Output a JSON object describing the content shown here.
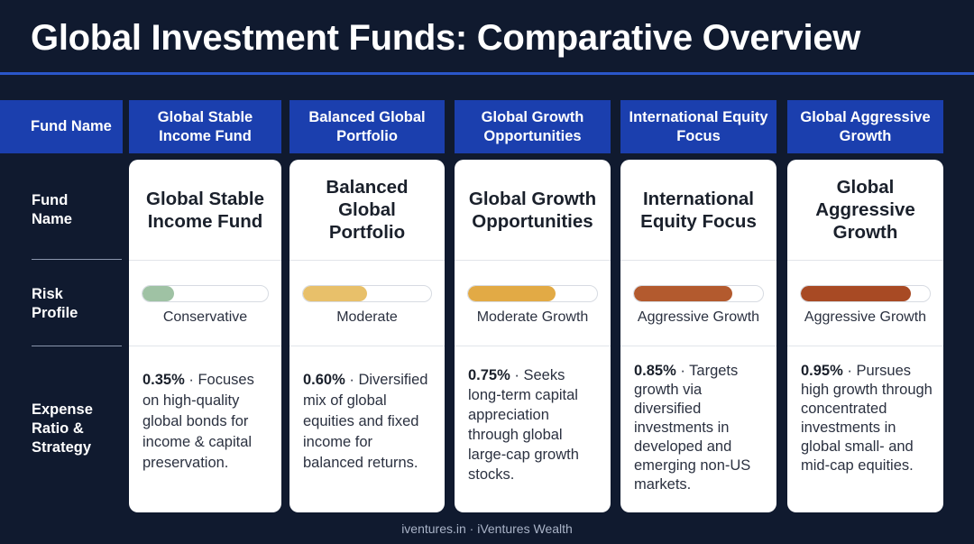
{
  "title": "Global Investment Funds: Comparative Overview",
  "header": {
    "first_label": "Fund Name",
    "columns": [
      "Global Stable Income Fund",
      "Balanced Global Portfolio",
      "Global Growth Opportunities",
      "International Equity Focus",
      "Global Aggressive Growth"
    ]
  },
  "row_labels": {
    "fund_name": "Fund Name",
    "risk_profile": "Risk Profile",
    "expense_strategy": "Expense Ratio & Strategy"
  },
  "funds": [
    {
      "name": "Global Stable Income Fund",
      "risk_label": "Conservative",
      "risk_level": 0.25,
      "risk_color": "#9fc2a4",
      "expense_ratio": "0.35%",
      "strategy": " · Focuses on high-quality global bonds for income & capital preservation."
    },
    {
      "name": "Balanced Global Portfolio",
      "risk_label": "Moderate",
      "risk_level": 0.5,
      "risk_color": "#e8c06a",
      "expense_ratio": "0.60%",
      "strategy": " · Diversified mix of global equities and fixed income for balanced returns."
    },
    {
      "name": "Global Growth Opportunities",
      "risk_label": "Moderate Growth",
      "risk_level": 0.68,
      "risk_color": "#e2aa45",
      "expense_ratio": "0.75%",
      "strategy": " · Seeks long-term capital appreciation through global large-cap growth stocks."
    },
    {
      "name": "International Equity Focus",
      "risk_label": "Aggressive Growth",
      "risk_level": 0.76,
      "risk_color": "#b35a2e",
      "expense_ratio": "0.85%",
      "strategy": " · Targets growth via diversified investments in developed and emerging non-US markets."
    },
    {
      "name": "Global Aggressive Growth",
      "risk_label": "Aggressive Growth",
      "risk_level": 0.85,
      "risk_color": "#a84a24",
      "expense_ratio": "0.95%",
      "strategy": " · Pursues high growth through concentrated investments in global small- and mid-cap equities."
    }
  ],
  "footer": "iventures.in · iVentures Wealth"
}
